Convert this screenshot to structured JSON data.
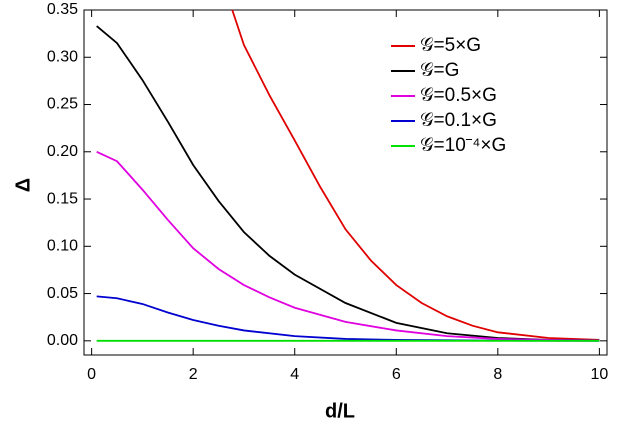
{
  "chart_data": {
    "type": "line",
    "x_label": "d/L",
    "y_label": "Δ",
    "xlim": [
      -0.15,
      10.15
    ],
    "ylim": [
      -0.015,
      0.35
    ],
    "xticks": [
      0,
      2,
      4,
      6,
      8,
      10
    ],
    "yticks": [
      {
        "value": 0,
        "label": "0.00"
      },
      0.05,
      {
        "value": 0.1,
        "label": "0.10"
      },
      0.15,
      {
        "value": 0.2,
        "label": "0.20"
      },
      0.25,
      {
        "value": 0.3,
        "label": "0.30"
      },
      0.35
    ],
    "legend": "upper right",
    "series": [
      {
        "name": "𝒢=5×G",
        "color": "#e00000",
        "x": [
          2.77,
          3,
          3.5,
          4,
          4.5,
          5,
          5.5,
          6,
          6.5,
          7,
          7.5,
          8,
          9,
          10
        ],
        "values": [
          0.35,
          0.313,
          0.26,
          0.212,
          0.163,
          0.118,
          0.085,
          0.059,
          0.04,
          0.026,
          0.016,
          0.009,
          0.003,
          0.001
        ]
      },
      {
        "name": "𝒢=G",
        "color": "#000000",
        "x": [
          0.1,
          0.5,
          1,
          1.5,
          2,
          2.5,
          3,
          3.5,
          4,
          5,
          6,
          7,
          8,
          9,
          10
        ],
        "values": [
          0.333,
          0.315,
          0.276,
          0.232,
          0.186,
          0.148,
          0.115,
          0.09,
          0.07,
          0.04,
          0.019,
          0.008,
          0.003,
          0.001,
          0.0005
        ]
      },
      {
        "name": "𝒢=0.5×G",
        "color": "#e000e0",
        "x": [
          0.1,
          0.5,
          1,
          1.5,
          2,
          2.5,
          3,
          3.5,
          4,
          5,
          6,
          7,
          8,
          9,
          10
        ],
        "values": [
          0.2,
          0.19,
          0.16,
          0.128,
          0.098,
          0.076,
          0.059,
          0.046,
          0.035,
          0.02,
          0.011,
          0.005,
          0.002,
          0.001,
          0.0003
        ]
      },
      {
        "name": "𝒢=0.1×G",
        "color": "#0000d0",
        "x": [
          0.1,
          0.5,
          1,
          1.5,
          2,
          2.5,
          3,
          4,
          5,
          6,
          8,
          10
        ],
        "values": [
          0.047,
          0.045,
          0.039,
          0.03,
          0.022,
          0.016,
          0.011,
          0.005,
          0.002,
          0.001,
          0.0002,
          0
        ]
      },
      {
        "name": "𝒢=10⁻⁴×G",
        "color": "#00e000",
        "x": [
          0.1,
          10
        ],
        "values": [
          0,
          0
        ]
      }
    ]
  }
}
